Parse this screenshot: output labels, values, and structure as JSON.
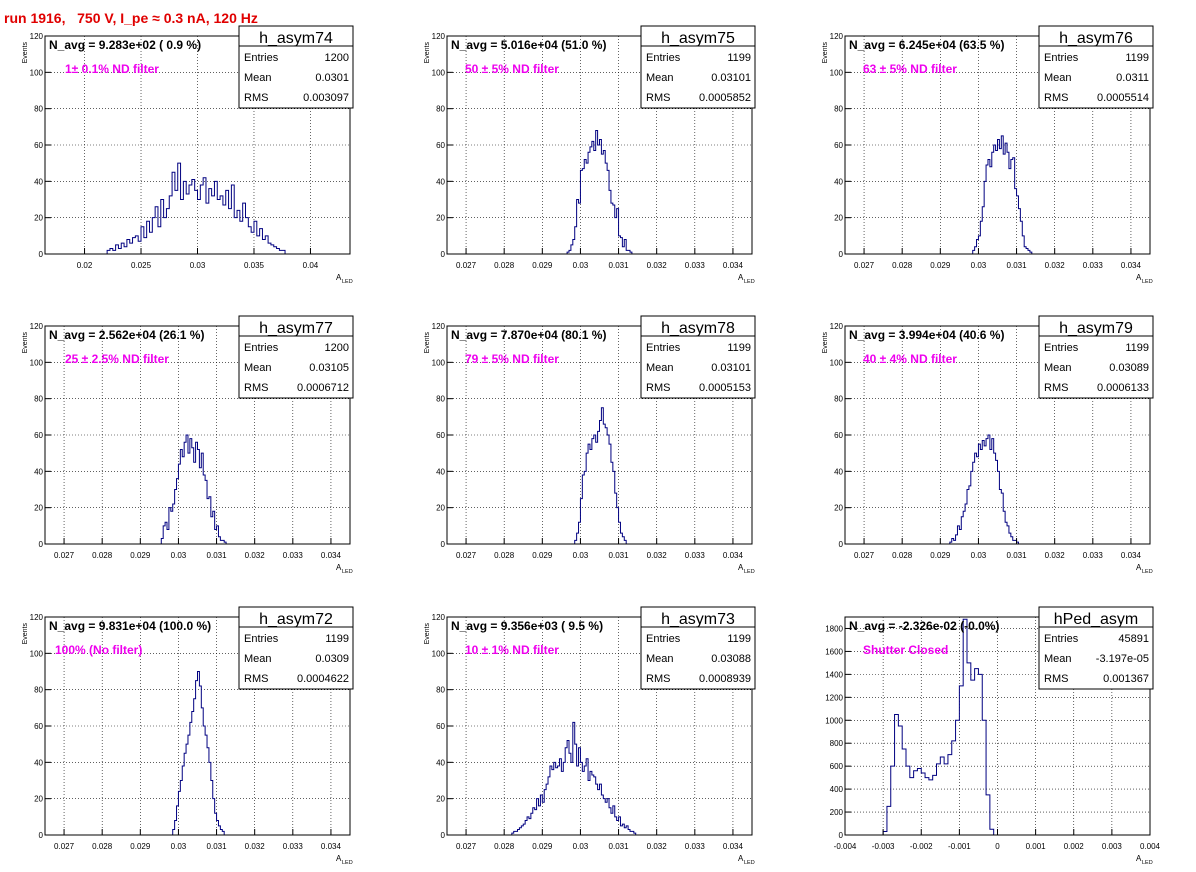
{
  "header": "run 1916,   750 V, I_pe ≈ 0.3 nA, 120 Hz",
  "colors": {
    "histogram": "#000080",
    "annotation": "#ee00ee",
    "header": "#e00000",
    "grid": "#000000"
  },
  "stat_labels": [
    "Entries",
    "Mean",
    "RMS"
  ],
  "chart_data": [
    {
      "type": "histogram",
      "name": "h_asym74",
      "title": "N_avg = 9.283e+02 ( 0.9 %)",
      "annotation": "1± 0.1% ND filter",
      "entries": "1200",
      "mean": "0.0301",
      "rms": "0.003097",
      "xlabel": "A",
      "xlabel_sub": "LED",
      "ylabel": "Events",
      "xlim": [
        0.0165,
        0.0435
      ],
      "ylim": [
        0,
        120
      ],
      "xticks": [
        0.02,
        0.025,
        0.03,
        0.035,
        0.04
      ],
      "xticklabels": [
        "0.02",
        "0.025",
        "0.03",
        "0.035",
        "0.04"
      ],
      "yticks": [
        0,
        20,
        40,
        60,
        80,
        100,
        120
      ],
      "yticklabels": [
        "0",
        "20",
        "40",
        "60",
        "80",
        "100",
        "120"
      ],
      "bins": {
        "start": 0.022,
        "width": 0.00025,
        "counts": [
          2,
          3,
          2,
          5,
          3,
          6,
          4,
          8,
          6,
          9,
          10,
          7,
          15,
          9,
          18,
          12,
          20,
          26,
          15,
          30,
          20,
          25,
          32,
          45,
          35,
          50,
          30,
          40,
          33,
          38,
          41,
          35,
          30,
          38,
          42,
          28,
          36,
          32,
          40,
          30,
          32,
          27,
          35,
          25,
          38,
          20,
          24,
          18,
          28,
          20,
          15,
          12,
          18,
          10,
          14,
          8,
          10,
          6,
          5,
          4,
          3,
          2,
          2
        ]
      }
    },
    {
      "type": "histogram",
      "name": "h_asym75",
      "title": "N_avg = 5.016e+04 (51.0 %)",
      "annotation": "50 ± 5% ND filter",
      "entries": "1199",
      "mean": "0.03101",
      "rms": "0.0005852",
      "xlabel": "A",
      "xlabel_sub": "LED",
      "ylabel": "Events",
      "xlim": [
        0.0265,
        0.0345
      ],
      "ylim": [
        0,
        120
      ],
      "xticks": [
        0.027,
        0.028,
        0.029,
        0.03,
        0.031,
        0.032,
        0.033,
        0.034
      ],
      "xticklabels": [
        "0.027",
        "0.028",
        "0.029",
        "0.03",
        "0.031",
        "0.032",
        "0.033",
        "0.034"
      ],
      "yticks": [
        0,
        20,
        40,
        60,
        80,
        100,
        120
      ],
      "yticklabels": [
        "0",
        "20",
        "40",
        "60",
        "80",
        "100",
        "120"
      ],
      "bins": {
        "start": 0.02965,
        "width": 5e-05,
        "counts": [
          1,
          2,
          5,
          8,
          15,
          30,
          28,
          46,
          47,
          52,
          50,
          56,
          59,
          62,
          57,
          68,
          60,
          63,
          55,
          57,
          50,
          46,
          35,
          28,
          27,
          20,
          25,
          10,
          9,
          4,
          8,
          2,
          2,
          1
        ]
      }
    },
    {
      "type": "histogram",
      "name": "h_asym76",
      "title": "N_avg = 6.245e+04 (63.5 %)",
      "annotation": "63 ± 5% ND filter",
      "entries": "1199",
      "mean": "0.0311",
      "rms": "0.0005514",
      "xlabel": "A",
      "xlabel_sub": "LED",
      "ylabel": "Events",
      "xlim": [
        0.0265,
        0.0345
      ],
      "ylim": [
        0,
        120
      ],
      "xticks": [
        0.027,
        0.028,
        0.029,
        0.03,
        0.031,
        0.032,
        0.033,
        0.034
      ],
      "xticklabels": [
        "0.027",
        "0.028",
        "0.029",
        "0.03",
        "0.031",
        "0.032",
        "0.033",
        "0.034"
      ],
      "yticks": [
        0,
        20,
        40,
        60,
        80,
        100,
        120
      ],
      "yticklabels": [
        "0",
        "20",
        "40",
        "60",
        "80",
        "100",
        "120"
      ],
      "bins": {
        "start": 0.02985,
        "width": 5e-05,
        "counts": [
          2,
          4,
          8,
          10,
          18,
          26,
          40,
          49,
          52,
          48,
          56,
          60,
          57,
          63,
          58,
          65,
          55,
          61,
          56,
          47,
          52,
          53,
          36,
          32,
          25,
          18,
          10,
          4,
          3,
          2,
          1
        ]
      }
    },
    {
      "type": "histogram",
      "name": "h_asym77",
      "title": "N_avg = 2.562e+04 (26.1 %)",
      "annotation": "25 ± 2.5% ND filter",
      "entries": "1200",
      "mean": "0.03105",
      "rms": "0.0006712",
      "xlabel": "A",
      "xlabel_sub": "LED",
      "ylabel": "Events",
      "xlim": [
        0.0265,
        0.0345
      ],
      "ylim": [
        0,
        120
      ],
      "xticks": [
        0.027,
        0.028,
        0.029,
        0.03,
        0.031,
        0.032,
        0.033,
        0.034
      ],
      "xticklabels": [
        "0.027",
        "0.028",
        "0.029",
        "0.03",
        "0.031",
        "0.032",
        "0.033",
        "0.034"
      ],
      "yticks": [
        0,
        20,
        40,
        60,
        80,
        100,
        120
      ],
      "yticklabels": [
        "0",
        "20",
        "40",
        "60",
        "80",
        "100",
        "120"
      ],
      "bins": {
        "start": 0.02955,
        "width": 5e-05,
        "counts": [
          3,
          10,
          12,
          8,
          20,
          18,
          22,
          30,
          36,
          44,
          52,
          48,
          56,
          60,
          50,
          58,
          53,
          45,
          56,
          52,
          42,
          50,
          38,
          35,
          25,
          26,
          15,
          18,
          8,
          10,
          4,
          2,
          2,
          1
        ]
      }
    },
    {
      "type": "histogram",
      "name": "h_asym78",
      "title": "N_avg = 7.870e+04 (80.1 %)",
      "annotation": "79 ± 5% ND filter",
      "entries": "1199",
      "mean": "0.03101",
      "rms": "0.0005153",
      "xlabel": "A",
      "xlabel_sub": "LED",
      "ylabel": "Events",
      "xlim": [
        0.0265,
        0.0345
      ],
      "ylim": [
        0,
        120
      ],
      "xticks": [
        0.027,
        0.028,
        0.029,
        0.03,
        0.031,
        0.032,
        0.033,
        0.034
      ],
      "xticklabels": [
        "0.027",
        "0.028",
        "0.029",
        "0.03",
        "0.031",
        "0.032",
        "0.033",
        "0.034"
      ],
      "yticks": [
        0,
        20,
        40,
        60,
        80,
        100,
        120
      ],
      "yticklabels": [
        "0",
        "20",
        "40",
        "60",
        "80",
        "100",
        "120"
      ],
      "bins": {
        "start": 0.02985,
        "width": 5e-05,
        "counts": [
          2,
          6,
          12,
          25,
          38,
          40,
          50,
          55,
          52,
          58,
          60,
          56,
          62,
          68,
          75,
          66,
          64,
          60,
          55,
          45,
          40,
          28,
          20,
          12,
          6,
          4,
          2
        ]
      }
    },
    {
      "type": "histogram",
      "name": "h_asym79",
      "title": "N_avg = 3.994e+04 (40.6 %)",
      "annotation": "40 ± 4% ND filter",
      "entries": "1199",
      "mean": "0.03089",
      "rms": "0.0006133",
      "xlabel": "A",
      "xlabel_sub": "LED",
      "ylabel": "Events",
      "xlim": [
        0.0265,
        0.0345
      ],
      "ylim": [
        0,
        120
      ],
      "xticks": [
        0.027,
        0.028,
        0.029,
        0.03,
        0.031,
        0.032,
        0.033,
        0.034
      ],
      "xticklabels": [
        "0.027",
        "0.028",
        "0.029",
        "0.03",
        "0.031",
        "0.032",
        "0.033",
        "0.034"
      ],
      "yticks": [
        0,
        20,
        40,
        60,
        80,
        100,
        120
      ],
      "yticklabels": [
        "0",
        "20",
        "40",
        "60",
        "80",
        "100",
        "120"
      ],
      "bins": {
        "start": 0.02925,
        "width": 5e-05,
        "counts": [
          1,
          3,
          2,
          5,
          10,
          8,
          15,
          18,
          22,
          30,
          32,
          40,
          45,
          50,
          48,
          55,
          52,
          57,
          54,
          58,
          60,
          52,
          58,
          50,
          46,
          40,
          30,
          28,
          18,
          12,
          10,
          6,
          4,
          2,
          2,
          1
        ]
      }
    },
    {
      "type": "histogram",
      "name": "h_asym72",
      "title": "N_avg = 9.831e+04 (100.0 %)",
      "annotation": "100% (No filter)",
      "entries": "1199",
      "mean": "0.0309",
      "rms": "0.0004622",
      "xlabel": "A",
      "xlabel_sub": "LED",
      "ylabel": "Events",
      "xlim": [
        0.0265,
        0.0345
      ],
      "ylim": [
        0,
        120
      ],
      "xticks": [
        0.027,
        0.028,
        0.029,
        0.03,
        0.031,
        0.032,
        0.033,
        0.034
      ],
      "xticklabels": [
        "0.027",
        "0.028",
        "0.029",
        "0.03",
        "0.031",
        "0.032",
        "0.033",
        "0.034"
      ],
      "yticks": [
        0,
        20,
        40,
        60,
        80,
        100,
        120
      ],
      "yticklabels": [
        "0",
        "20",
        "40",
        "60",
        "80",
        "100",
        "120"
      ],
      "bins": {
        "start": 0.02985,
        "width": 5e-05,
        "counts": [
          3,
          8,
          16,
          24,
          30,
          38,
          45,
          50,
          55,
          62,
          68,
          75,
          85,
          90,
          82,
          70,
          60,
          55,
          48,
          40,
          30,
          20,
          12,
          8,
          5,
          3,
          2
        ]
      }
    },
    {
      "type": "histogram",
      "name": "h_asym73",
      "title": "N_avg = 9.356e+03 ( 9.5 %)",
      "annotation": "10 ± 1% ND filter",
      "entries": "1199",
      "mean": "0.03088",
      "rms": "0.0008939",
      "xlabel": "A",
      "xlabel_sub": "LED",
      "ylabel": "Events",
      "xlim": [
        0.0265,
        0.0345
      ],
      "ylim": [
        0,
        120
      ],
      "xticks": [
        0.027,
        0.028,
        0.029,
        0.03,
        0.031,
        0.032,
        0.033,
        0.034
      ],
      "xticklabels": [
        "0.027",
        "0.028",
        "0.029",
        "0.03",
        "0.031",
        "0.032",
        "0.033",
        "0.034"
      ],
      "yticks": [
        0,
        20,
        40,
        60,
        80,
        100,
        120
      ],
      "yticklabels": [
        "0",
        "20",
        "40",
        "60",
        "80",
        "100",
        "120"
      ],
      "bins": {
        "start": 0.0282,
        "width": 5e-05,
        "counts": [
          1,
          2,
          2,
          3,
          4,
          5,
          6,
          8,
          10,
          9,
          12,
          15,
          14,
          20,
          16,
          22,
          18,
          25,
          28,
          32,
          38,
          36,
          40,
          37,
          38,
          42,
          35,
          40,
          48,
          52,
          45,
          40,
          62,
          50,
          38,
          48,
          40,
          35,
          38,
          42,
          30,
          35,
          33,
          32,
          28,
          25,
          28,
          22,
          20,
          18,
          20,
          15,
          12,
          16,
          10,
          8,
          10,
          5,
          6,
          4,
          5,
          3,
          2,
          2,
          1
        ]
      }
    },
    {
      "type": "histogram",
      "name": "hPed_asym",
      "title": "N_avg = -2.326e-02 (-0.0%)",
      "annotation": "Shutter Closed",
      "entries": "45891",
      "mean": "-3.197e-05",
      "rms": "0.001367",
      "xlabel": "A",
      "xlabel_sub": "LED",
      "ylabel": "",
      "xlim": [
        -0.004,
        0.004
      ],
      "ylim": [
        0,
        1900
      ],
      "xticks": [
        -0.004,
        -0.003,
        -0.002,
        -0.001,
        0,
        0.001,
        0.002,
        0.003,
        0.004
      ],
      "xticklabels": [
        "-0.004",
        "-0.003",
        "-0.002",
        "-0.001",
        "0",
        "0.001",
        "0.002",
        "0.003",
        "0.004"
      ],
      "yticks": [
        0,
        200,
        400,
        600,
        800,
        1000,
        1200,
        1400,
        1600,
        1800
      ],
      "yticklabels": [
        "0",
        "200",
        "400",
        "600",
        "800",
        "1000",
        "1200",
        "1400",
        "1600",
        "1800"
      ],
      "bins": {
        "start": -0.0031,
        "width": 0.0001,
        "counts": [
          0,
          30,
          250,
          600,
          1050,
          950,
          750,
          600,
          500,
          560,
          580,
          540,
          500,
          480,
          520,
          620,
          680,
          620,
          700,
          820,
          1000,
          1300,
          1880,
          1500,
          1350,
          1450,
          1400,
          1000,
          350,
          50,
          0
        ]
      }
    }
  ]
}
